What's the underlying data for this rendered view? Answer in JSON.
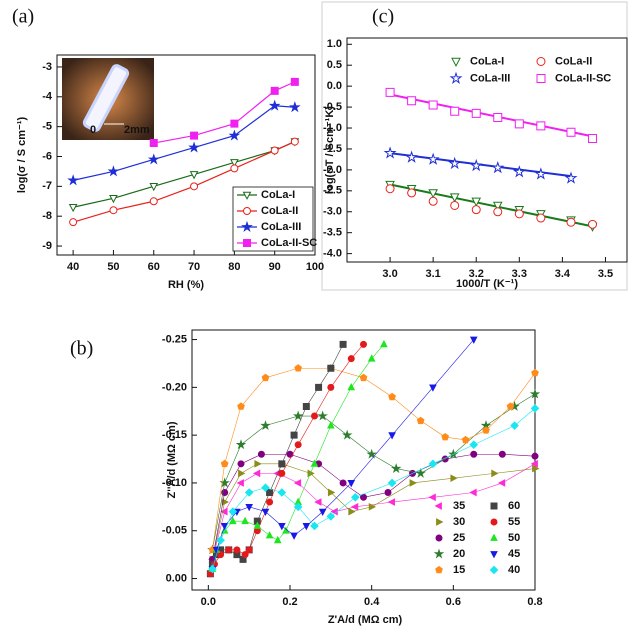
{
  "chart_data": [
    {
      "type": "line",
      "panel_label": "(a)",
      "x_label": "RH (%)",
      "y_label": "log(σ / S cm⁻¹)",
      "inset_labels": [
        "0",
        "2mm"
      ],
      "xlim": [
        36,
        100
      ],
      "ylim": [
        -9.3,
        -2.6
      ],
      "xticks": [
        40,
        50,
        60,
        70,
        80,
        90,
        100
      ],
      "yticks": [
        -9,
        -8,
        -7,
        -6,
        -5,
        -4,
        -3
      ],
      "legend": "lower right",
      "series": [
        {
          "name": "CoLa-I",
          "color": "#1a6b1a",
          "marker": "triangle-down",
          "filled": false,
          "x": [
            40,
            50,
            60,
            70,
            80,
            90,
            95
          ],
          "values": [
            -7.7,
            -7.4,
            -7.0,
            -6.6,
            -6.2,
            -5.8,
            -5.5
          ]
        },
        {
          "name": "CoLa-II",
          "color": "#e8231d",
          "marker": "circle",
          "filled": false,
          "x": [
            40,
            50,
            60,
            70,
            80,
            90,
            95
          ],
          "values": [
            -8.2,
            -7.8,
            -7.5,
            -7.0,
            -6.4,
            -5.8,
            -5.5
          ]
        },
        {
          "name": "CoLa-III",
          "color": "#1f2fd6",
          "marker": "star",
          "filled": true,
          "x": [
            40,
            50,
            60,
            70,
            80,
            90,
            95
          ],
          "values": [
            -6.8,
            -6.5,
            -6.1,
            -5.7,
            -5.3,
            -4.3,
            -4.35
          ]
        },
        {
          "name": "CoLa-II-SC",
          "color": "#f020f0",
          "marker": "square",
          "filled": true,
          "x": [
            60,
            70,
            80,
            90,
            95
          ],
          "values": [
            -5.55,
            -5.3,
            -4.9,
            -3.8,
            -3.5
          ]
        }
      ]
    },
    {
      "type": "scatter",
      "panel_label": "(c)",
      "x_label": "1000/T (K⁻¹)",
      "y_label": "log(σT / Scm⁻¹K)",
      "xlim": [
        2.9,
        3.55
      ],
      "ylim": [
        -4.2,
        1.15
      ],
      "xticks": [
        {
          "value": 3,
          "label": "3.0"
        },
        3.1,
        3.2,
        3.3,
        3.4,
        3.5
      ],
      "yticks": [
        {
          "value": 1,
          "label": "1.0"
        },
        0.5,
        {
          "value": 0,
          "label": "0.0"
        },
        -0.5,
        {
          "value": -1,
          "label": "-1.0"
        },
        -1.5,
        {
          "value": -2,
          "label": "-2.0"
        },
        -2.5,
        {
          "value": -3,
          "label": "-3.0"
        },
        -3.5,
        {
          "value": -4,
          "label": "-4.0"
        }
      ],
      "legend": "upper right",
      "series": [
        {
          "name": "CoLa-I",
          "color": "#1a7a1a",
          "marker": "triangle-down",
          "filled": false,
          "x": [
            3.0,
            3.05,
            3.1,
            3.15,
            3.2,
            3.25,
            3.3,
            3.35,
            3.42,
            3.47
          ],
          "values": [
            -2.35,
            -2.45,
            -2.55,
            -2.65,
            -2.75,
            -2.85,
            -2.95,
            -3.05,
            -3.2,
            -3.35
          ],
          "fit": {
            "x": [
              3.0,
              3.47
            ],
            "values": [
              -2.35,
              -3.35
            ]
          }
        },
        {
          "name": "CoLa-II",
          "color": "#e8231d",
          "marker": "circle",
          "filled": false,
          "x": [
            3.0,
            3.05,
            3.1,
            3.15,
            3.2,
            3.25,
            3.3,
            3.35,
            3.42,
            3.47
          ],
          "values": [
            -2.45,
            -2.55,
            -2.75,
            -2.85,
            -2.95,
            -3.0,
            -3.05,
            -3.15,
            -3.25,
            -3.3
          ]
        },
        {
          "name": "CoLa-III",
          "color": "#1f2fd6",
          "marker": "star",
          "filled": false,
          "x": [
            3.0,
            3.05,
            3.1,
            3.15,
            3.2,
            3.25,
            3.3,
            3.35,
            3.42
          ],
          "values": [
            -1.6,
            -1.7,
            -1.75,
            -1.85,
            -1.9,
            -1.95,
            -2.05,
            -2.1,
            -2.2
          ],
          "fit": {
            "x": [
              3.0,
              3.42
            ],
            "values": [
              -1.6,
              -2.15
            ]
          }
        },
        {
          "name": "CoLa-II-SC",
          "color": "#f020f0",
          "marker": "square",
          "filled": false,
          "x": [
            3.0,
            3.05,
            3.1,
            3.15,
            3.2,
            3.25,
            3.3,
            3.35,
            3.42,
            3.47
          ],
          "values": [
            -0.15,
            -0.35,
            -0.45,
            -0.6,
            -0.65,
            -0.75,
            -0.9,
            -0.95,
            -1.1,
            -1.25
          ],
          "fit": {
            "x": [
              3.0,
              3.47
            ],
            "values": [
              -0.2,
              -1.2
            ]
          }
        }
      ]
    },
    {
      "type": "line",
      "panel_label": "(b)",
      "x_label": "Z'A/d (MΩ cm)",
      "y_label": "Z''A/d (MΩ cm)",
      "xlim": [
        -0.04,
        0.8
      ],
      "ylim": [
        0.012,
        -0.26
      ],
      "xticks": [
        {
          "value": 0,
          "label": "0.0"
        },
        0.2,
        0.4,
        0.6,
        0.8
      ],
      "yticks": [
        {
          "value": 0,
          "label": "0.00"
        },
        -0.05,
        {
          "value": -0.1,
          "label": "-0.10"
        },
        -0.15,
        {
          "value": -0.2,
          "label": "-0.20"
        },
        -0.25
      ],
      "legend": "lower right",
      "series": [
        {
          "name": "35",
          "color": "#ff2bd6",
          "marker": "triangle-left",
          "filled": true,
          "x": [
            0.01,
            0.04,
            0.08,
            0.12,
            0.17,
            0.22,
            0.27,
            0.31,
            0.36,
            0.45,
            0.55,
            0.65,
            0.72,
            0.8
          ],
          "values": [
            -0.02,
            -0.07,
            -0.1,
            -0.11,
            -0.11,
            -0.1,
            -0.08,
            -0.07,
            -0.075,
            -0.08,
            -0.085,
            -0.09,
            -0.1,
            -0.12
          ]
        },
        {
          "name": "30",
          "color": "#8c8c1a",
          "marker": "triangle-right",
          "filled": true,
          "x": [
            0.01,
            0.04,
            0.08,
            0.12,
            0.18,
            0.25,
            0.3,
            0.35,
            0.4,
            0.5,
            0.6,
            0.7,
            0.8
          ],
          "values": [
            -0.02,
            -0.08,
            -0.11,
            -0.12,
            -0.12,
            -0.11,
            -0.09,
            -0.07,
            -0.075,
            -0.1,
            -0.105,
            -0.11,
            -0.115
          ]
        },
        {
          "name": "25",
          "color": "#800080",
          "marker": "circle",
          "filled": true,
          "x": [
            0.01,
            0.04,
            0.08,
            0.13,
            0.2,
            0.27,
            0.33,
            0.38,
            0.44,
            0.5,
            0.58,
            0.65,
            0.72,
            0.8
          ],
          "values": [
            -0.02,
            -0.09,
            -0.12,
            -0.13,
            -0.13,
            -0.12,
            -0.1,
            -0.085,
            -0.09,
            -0.11,
            -0.125,
            -0.13,
            -0.13,
            -0.128
          ]
        },
        {
          "name": "20",
          "color": "#2e7d2e",
          "marker": "star",
          "filled": true,
          "x": [
            0.01,
            0.04,
            0.08,
            0.14,
            0.22,
            0.28,
            0.34,
            0.4,
            0.46,
            0.52,
            0.6,
            0.68,
            0.75,
            0.8
          ],
          "values": [
            -0.03,
            -0.1,
            -0.14,
            -0.16,
            -0.17,
            -0.17,
            -0.15,
            -0.13,
            -0.115,
            -0.11,
            -0.13,
            -0.16,
            -0.18,
            -0.193
          ]
        },
        {
          "name": "15",
          "color": "#ff8c1a",
          "marker": "pentagon",
          "filled": true,
          "x": [
            0.01,
            0.04,
            0.08,
            0.14,
            0.22,
            0.3,
            0.38,
            0.45,
            0.52,
            0.58,
            0.63,
            0.68,
            0.74,
            0.8
          ],
          "values": [
            -0.03,
            -0.12,
            -0.18,
            -0.21,
            -0.22,
            -0.22,
            -0.21,
            -0.19,
            -0.165,
            -0.148,
            -0.145,
            -0.155,
            -0.18,
            -0.215
          ]
        },
        {
          "name": "60",
          "color": "#444444",
          "marker": "square",
          "filled": true,
          "x": [
            0.005,
            0.01,
            0.02,
            0.03,
            0.05,
            0.07,
            0.085,
            0.1,
            0.12,
            0.15,
            0.18,
            0.21,
            0.24,
            0.27,
            0.3,
            0.33
          ],
          "values": [
            -0.005,
            -0.015,
            -0.025,
            -0.03,
            -0.03,
            -0.025,
            -0.02,
            -0.03,
            -0.06,
            -0.09,
            -0.12,
            -0.15,
            -0.18,
            -0.2,
            -0.22,
            -0.245
          ]
        },
        {
          "name": "55",
          "color": "#e31a1c",
          "marker": "circle",
          "filled": true,
          "x": [
            0.005,
            0.015,
            0.03,
            0.05,
            0.07,
            0.09,
            0.1,
            0.12,
            0.15,
            0.18,
            0.22,
            0.26,
            0.3,
            0.35,
            0.38
          ],
          "values": [
            -0.005,
            -0.015,
            -0.025,
            -0.03,
            -0.03,
            -0.025,
            -0.03,
            -0.05,
            -0.08,
            -0.11,
            -0.14,
            -0.17,
            -0.2,
            -0.23,
            -0.245
          ]
        },
        {
          "name": "50",
          "color": "#1ee61e",
          "marker": "triangle-up",
          "filled": true,
          "x": [
            0.01,
            0.02,
            0.04,
            0.06,
            0.09,
            0.12,
            0.15,
            0.17,
            0.19,
            0.22,
            0.26,
            0.3,
            0.35,
            0.4,
            0.43
          ],
          "values": [
            -0.01,
            -0.03,
            -0.05,
            -0.06,
            -0.06,
            -0.055,
            -0.045,
            -0.04,
            -0.05,
            -0.08,
            -0.12,
            -0.16,
            -0.2,
            -0.23,
            -0.245
          ]
        },
        {
          "name": "45",
          "color": "#1a1ae6",
          "marker": "triangle-down",
          "filled": true,
          "x": [
            0.01,
            0.02,
            0.04,
            0.07,
            0.1,
            0.14,
            0.18,
            0.21,
            0.24,
            0.28,
            0.35,
            0.45,
            0.55,
            0.65
          ],
          "values": [
            -0.01,
            -0.03,
            -0.055,
            -0.07,
            -0.075,
            -0.07,
            -0.055,
            -0.045,
            -0.055,
            -0.07,
            -0.1,
            -0.15,
            -0.2,
            -0.25
          ]
        },
        {
          "name": "40",
          "color": "#1ae6f0",
          "marker": "diamond",
          "filled": true,
          "x": [
            0.01,
            0.03,
            0.06,
            0.1,
            0.14,
            0.18,
            0.22,
            0.26,
            0.3,
            0.36,
            0.45,
            0.55,
            0.65,
            0.75,
            0.8
          ],
          "values": [
            -0.01,
            -0.04,
            -0.07,
            -0.09,
            -0.095,
            -0.09,
            -0.075,
            -0.055,
            -0.065,
            -0.085,
            -0.1,
            -0.12,
            -0.14,
            -0.16,
            -0.178
          ]
        }
      ]
    }
  ]
}
